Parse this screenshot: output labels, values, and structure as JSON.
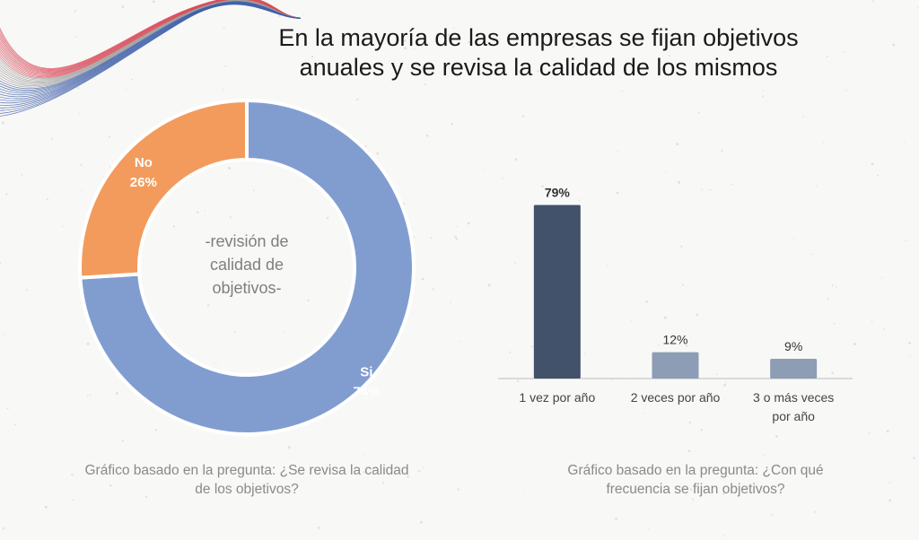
{
  "title": {
    "line1": "En la mayoría de las empresas se fijan objetivos",
    "line2": "anuales y se revisa la calidad de los mismos"
  },
  "colors": {
    "si": "#819dd0",
    "no": "#f39b5c",
    "bar_main": "#43526b",
    "bar_light": "#8d9db6",
    "axis": "#bdbdbd",
    "center_text": "#7f7f7f",
    "bar_label": "#333333"
  },
  "chart_data": [
    {
      "type": "pie",
      "variant": "donut",
      "center_label": [
        "-revisión de",
        "calidad de",
        "objetivos-"
      ],
      "categories": [
        "Si",
        "No"
      ],
      "values": [
        74,
        26
      ],
      "value_labels": [
        "74%",
        "26%"
      ]
    },
    {
      "type": "bar",
      "categories": [
        "1 vez por año",
        "2 veces por año",
        "3 o más veces por año"
      ],
      "category_lines": [
        [
          "1 vez por año"
        ],
        [
          "2 veces por año"
        ],
        [
          "3 o más veces",
          "por año"
        ]
      ],
      "values": [
        79,
        12,
        9
      ],
      "value_labels": [
        "79%",
        "12%",
        "9%"
      ],
      "ylim": [
        0,
        100
      ],
      "xlabel": "",
      "ylabel": ""
    }
  ],
  "notes": {
    "left": {
      "line1": "Gráfico basado en la pregunta: ¿Se revisa la calidad",
      "line2": "de los objetivos?"
    },
    "right": {
      "line1": "Gráfico basado en la pregunta: ¿Con qué",
      "line2": "frecuencia se fijan objetivos?"
    }
  }
}
